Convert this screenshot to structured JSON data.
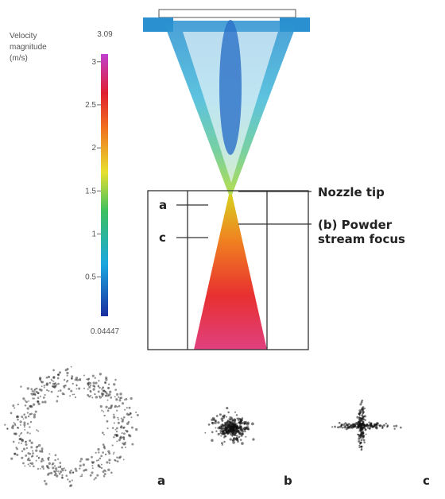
{
  "colorbar": {
    "title": [
      "Velocity",
      "magnitude",
      "(m/s)"
    ],
    "max": 3.09,
    "min": 0.04447,
    "ticks": [
      0.5,
      1,
      1.5,
      2,
      2.5,
      3
    ]
  },
  "labels": {
    "nozzle_tip": "Nozzle tip",
    "powder_focus": [
      "(b) Powder",
      "stream focus"
    ],
    "plane_a": "a",
    "plane_c": "c"
  },
  "panels": [
    "a",
    "b",
    "c"
  ]
}
